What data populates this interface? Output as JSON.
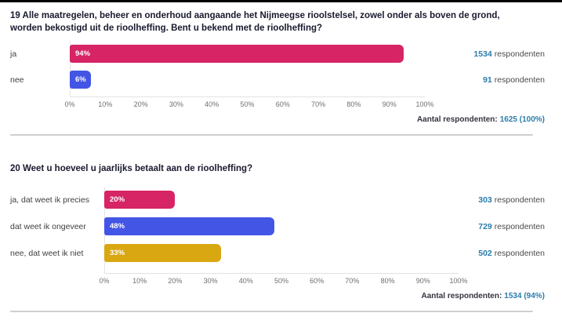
{
  "page": {
    "background": "#ffffff",
    "top_bar_color": "#000000",
    "value_accent_color": "#2b7cab"
  },
  "chart_data": [
    {
      "type": "bar",
      "orientation": "horizontal",
      "title": "19 Alle maatregelen, beheer en onderhoud aangaande het Nijmeegse rioolstelsel, zowel onder als boven de grond, worden bekostigd uit de rioolheffing. Bent u bekend met de rioolheffing?",
      "categories": [
        "ja",
        "nee"
      ],
      "values": [
        94,
        6
      ],
      "value_labels": [
        "94%",
        "6%"
      ],
      "respondents": [
        1534,
        91
      ],
      "respondents_word": "respondenten",
      "bar_colors": [
        "#d62465",
        "#4355e5"
      ],
      "xlim": [
        0,
        100
      ],
      "xlabel_ticks": [
        "0%",
        "10%",
        "20%",
        "30%",
        "40%",
        "50%",
        "60%",
        "70%",
        "80%",
        "90%",
        "100%"
      ],
      "grid": false,
      "legend": "none",
      "total_label": "Aantal respondenten:",
      "total_value": "1625 (100%)"
    },
    {
      "type": "bar",
      "orientation": "horizontal",
      "title": "20 Weet u hoeveel u jaarlijks betaalt aan de rioolheffing?",
      "categories": [
        "ja, dat weet ik precies",
        "dat weet ik ongeveer",
        "nee, dat weet ik niet"
      ],
      "values": [
        20,
        48,
        33
      ],
      "value_labels": [
        "20%",
        "48%",
        "33%"
      ],
      "respondents": [
        303,
        729,
        502
      ],
      "respondents_word": "respondenten",
      "bar_colors": [
        "#d62465",
        "#4355e5",
        "#d9a711"
      ],
      "xlim": [
        0,
        100
      ],
      "xlabel_ticks": [
        "0%",
        "10%",
        "20%",
        "30%",
        "40%",
        "50%",
        "60%",
        "70%",
        "80%",
        "90%",
        "100%"
      ],
      "grid": false,
      "legend": "none",
      "total_label": "Aantal respondenten:",
      "total_value": "1534 (94%)"
    }
  ]
}
